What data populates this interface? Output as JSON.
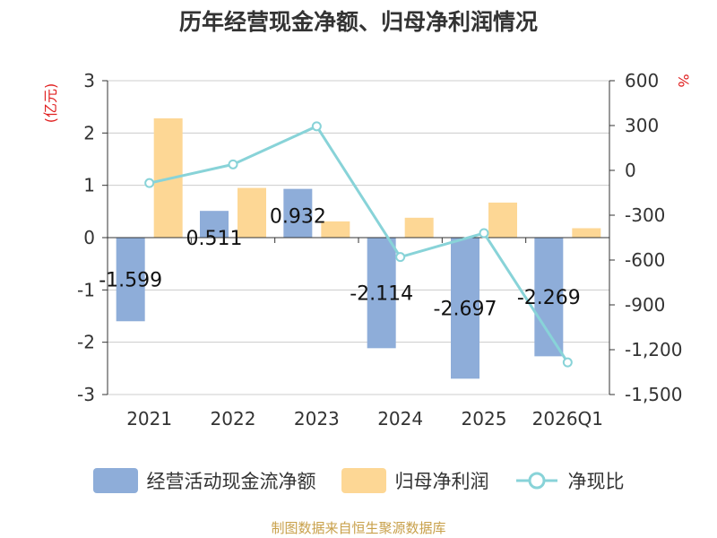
{
  "chart_data": {
    "type": "bar+line",
    "title": "历年经营现金净额、归母净利润情况",
    "ylabel_left": "(亿元)",
    "ylabel_right": "%",
    "categories": [
      "2021",
      "2022",
      "2023",
      "2024",
      "2025",
      "2026Q1"
    ],
    "ylim_left": [
      -3,
      3
    ],
    "yticks_left": [
      3,
      2,
      1,
      0,
      -1,
      -2,
      -3
    ],
    "ylim_right": [
      -1500,
      600
    ],
    "yticks_right": [
      600,
      300,
      0,
      -300,
      -600,
      -900,
      -1200,
      -1500
    ],
    "yticks_right_labels": [
      "600",
      "300",
      "0",
      "-300",
      "-600",
      "-900",
      "-1,200",
      "-1,500"
    ],
    "series": [
      {
        "name": "经营活动现金流净额",
        "type": "bar",
        "axis": "left",
        "color": "#8eadd9",
        "values": [
          -1.599,
          0.511,
          0.932,
          -2.114,
          -2.697,
          -2.269
        ],
        "labels": [
          "-1.599",
          "0.511",
          "0.932",
          "-2.114",
          "-2.697",
          "-2.269"
        ]
      },
      {
        "name": "归母净利润",
        "type": "bar",
        "axis": "left",
        "color": "#fdd795",
        "values": [
          2.28,
          0.95,
          0.31,
          0.38,
          0.67,
          0.18
        ]
      },
      {
        "name": "净现比",
        "type": "line",
        "axis": "right",
        "color": "#88d3d8",
        "values": [
          -85,
          40,
          295,
          -580,
          -420,
          -1285
        ]
      }
    ],
    "grid": true,
    "legend": "bottom-center"
  },
  "legend": {
    "item1": "经营活动现金流净额",
    "item2": "归母净利润",
    "item3": "净现比"
  },
  "source": "制图数据来自恒生聚源数据库",
  "colors": {
    "title": "#333333",
    "axis_unit": "#e02020",
    "source": "#c8a04a"
  }
}
